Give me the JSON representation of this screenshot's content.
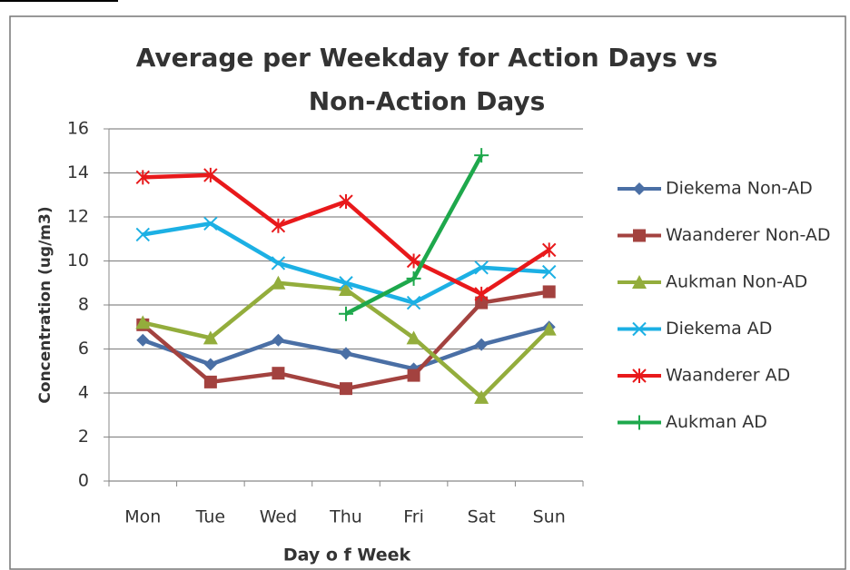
{
  "chart_data": {
    "type": "line",
    "title": "Average per Weekday for Action Days vs Non-Action Days",
    "x_label": "Day o f Week",
    "y_label": "Concentration  (ug/m3)",
    "categories": [
      "Mon",
      "Tue",
      "Wed",
      "Thu",
      "Fri",
      "Sat",
      "Sun"
    ],
    "series": [
      {
        "name": "Diekema Non-AD",
        "color": "#4a6fa5",
        "marker": "diamond",
        "values": [
          6.4,
          5.3,
          6.4,
          5.8,
          5.1,
          6.2,
          7.0
        ]
      },
      {
        "name": "Waanderer Non-AD",
        "color": "#a3423f",
        "marker": "square",
        "values": [
          7.1,
          4.5,
          4.9,
          4.2,
          4.8,
          8.1,
          8.6
        ]
      },
      {
        "name": "Aukman  Non-AD",
        "color": "#93ad3c",
        "marker": "triangle",
        "values": [
          7.2,
          6.5,
          9.0,
          8.7,
          6.5,
          3.8,
          6.9
        ]
      },
      {
        "name": "Diekema AD",
        "color": "#1cb0e4",
        "marker": "x",
        "values": [
          11.2,
          11.7,
          9.9,
          9.0,
          8.1,
          9.7,
          9.5
        ]
      },
      {
        "name": "Waanderer AD",
        "color": "#e8191b",
        "marker": "star",
        "values": [
          13.8,
          13.9,
          11.6,
          12.7,
          10.0,
          8.5,
          10.5
        ]
      },
      {
        "name": "Aukman AD",
        "color": "#1ea84c",
        "marker": "plus",
        "values": [
          null,
          null,
          null,
          7.6,
          9.2,
          14.8,
          null
        ]
      }
    ],
    "ylim": [
      0,
      16
    ],
    "yticks": [
      0,
      2,
      4,
      6,
      8,
      10,
      12,
      14,
      16
    ],
    "grid": true,
    "legend": "right"
  }
}
